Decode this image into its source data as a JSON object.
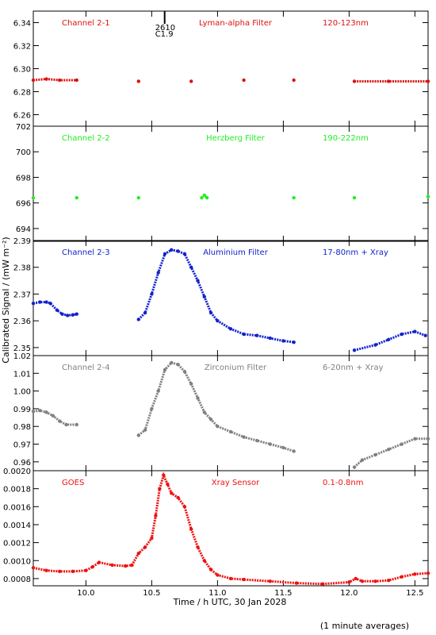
{
  "figure": {
    "ylabel": "Calibrated Signal / (mW m⁻²)",
    "xlabel": "Time / h UTC, 30 Jan 2028",
    "footnote": "(1 minute averages)"
  },
  "event": {
    "label_top": "2610",
    "label_bottom": "C1.9",
    "x": 10.55
  },
  "chart_data": [
    {
      "type": "scatter",
      "panel_label": "Channel 2-1",
      "filter": "Lyman-alpha Filter",
      "band": "120-123nm",
      "color": "#dd1111",
      "xlim": [
        9.6,
        12.6
      ],
      "ylim": [
        6.25,
        6.35
      ],
      "yticks": [
        6.26,
        6.28,
        6.3,
        6.32,
        6.34
      ],
      "ytick_labels": [
        "6.26",
        "6.28",
        "6.30",
        "6.32",
        "6.34"
      ],
      "series_points": [
        [
          9.6,
          6.29
        ],
        [
          9.7,
          6.291
        ],
        [
          9.8,
          6.29
        ],
        [
          9.93,
          6.29
        ],
        [
          10.4,
          6.289
        ],
        [
          10.8,
          6.289
        ],
        [
          11.2,
          6.29
        ],
        [
          11.58,
          6.29
        ],
        [
          12.04,
          6.289
        ],
        [
          12.3,
          6.289
        ],
        [
          12.6,
          6.289
        ]
      ]
    },
    {
      "type": "scatter",
      "panel_label": "Channel 2-2",
      "filter": "Herzberg Filter",
      "band": "190-222nm",
      "color": "#22ee22",
      "xlim": [
        9.6,
        12.6
      ],
      "ylim": [
        693,
        702
      ],
      "yticks": [
        694,
        696,
        698,
        700,
        702
      ],
      "ytick_labels": [
        "694",
        "696",
        "698",
        "700",
        "702"
      ],
      "series_points": [
        [
          9.6,
          696.4
        ],
        [
          9.93,
          696.4
        ],
        [
          10.4,
          696.4
        ],
        [
          10.88,
          696.4
        ],
        [
          10.9,
          696.6
        ],
        [
          10.92,
          696.4
        ],
        [
          11.58,
          696.4
        ],
        [
          12.04,
          696.4
        ],
        [
          12.6,
          696.5
        ]
      ]
    },
    {
      "type": "scatter",
      "panel_label": "Channel 2-3",
      "filter": "Aluminium Filter",
      "band": "17-80nm + Xray",
      "color": "#1122cc",
      "xlim": [
        9.6,
        12.6
      ],
      "ylim": [
        2.347,
        2.39
      ],
      "yticks": [
        2.35,
        2.36,
        2.37,
        2.38,
        2.39
      ],
      "ytick_labels": [
        "2.35",
        "2.36",
        "2.37",
        "2.38",
        "2.39"
      ],
      "series_points": [
        [
          9.6,
          2.3665
        ],
        [
          9.65,
          2.367
        ],
        [
          9.7,
          2.367
        ],
        [
          9.73,
          2.3665
        ],
        [
          9.78,
          2.364
        ],
        [
          9.82,
          2.3625
        ],
        [
          9.86,
          2.362
        ],
        [
          9.9,
          2.3622
        ],
        [
          9.93,
          2.3625
        ],
        [
          10.4,
          2.3605
        ],
        [
          10.45,
          2.363
        ],
        [
          10.5,
          2.37
        ],
        [
          10.55,
          2.378
        ],
        [
          10.6,
          2.385
        ],
        [
          10.65,
          2.3865
        ],
        [
          10.7,
          2.386
        ],
        [
          10.75,
          2.385
        ],
        [
          10.8,
          2.38
        ],
        [
          10.85,
          2.375
        ],
        [
          10.9,
          2.369
        ],
        [
          10.95,
          2.363
        ],
        [
          11.0,
          2.36
        ],
        [
          11.1,
          2.357
        ],
        [
          11.2,
          2.355
        ],
        [
          11.3,
          2.3545
        ],
        [
          11.4,
          2.3535
        ],
        [
          11.5,
          2.3525
        ],
        [
          11.58,
          2.352
        ],
        [
          12.04,
          2.349
        ],
        [
          12.2,
          2.351
        ],
        [
          12.3,
          2.353
        ],
        [
          12.4,
          2.355
        ],
        [
          12.5,
          2.356
        ],
        [
          12.58,
          2.3545
        ]
      ]
    },
    {
      "type": "scatter",
      "panel_label": "Channel 2-4",
      "filter": "Zirconium Filter",
      "band": "6-20nm + Xray",
      "color": "#808080",
      "xlim": [
        9.6,
        12.6
      ],
      "ylim": [
        0.955,
        1.02
      ],
      "yticks": [
        0.96,
        0.97,
        0.98,
        0.99,
        1.0,
        1.01,
        1.02
      ],
      "ytick_labels": [
        "0.96",
        "0.97",
        "0.98",
        "0.99",
        "1.00",
        "1.01",
        "1.02"
      ],
      "series_points": [
        [
          9.6,
          0.9885
        ],
        [
          9.65,
          0.989
        ],
        [
          9.7,
          0.988
        ],
        [
          9.75,
          0.986
        ],
        [
          9.8,
          0.983
        ],
        [
          9.85,
          0.981
        ],
        [
          9.93,
          0.981
        ],
        [
          10.4,
          0.975
        ],
        [
          10.45,
          0.978
        ],
        [
          10.5,
          0.99
        ],
        [
          10.55,
          1.0
        ],
        [
          10.6,
          1.012
        ],
        [
          10.65,
          1.016
        ],
        [
          10.7,
          1.015
        ],
        [
          10.75,
          1.011
        ],
        [
          10.8,
          1.004
        ],
        [
          10.85,
          0.996
        ],
        [
          10.9,
          0.988
        ],
        [
          10.95,
          0.984
        ],
        [
          11.0,
          0.98
        ],
        [
          11.1,
          0.977
        ],
        [
          11.2,
          0.974
        ],
        [
          11.3,
          0.972
        ],
        [
          11.4,
          0.97
        ],
        [
          11.5,
          0.968
        ],
        [
          11.58,
          0.966
        ],
        [
          12.04,
          0.957
        ],
        [
          12.1,
          0.961
        ],
        [
          12.2,
          0.964
        ],
        [
          12.3,
          0.967
        ],
        [
          12.4,
          0.97
        ],
        [
          12.5,
          0.973
        ],
        [
          12.6,
          0.973
        ]
      ]
    },
    {
      "type": "scatter",
      "panel_label": "GOES",
      "filter": "Xray Sensor",
      "band": "0.1-0.8nm",
      "color": "#ee1111",
      "xlim": [
        9.6,
        12.6
      ],
      "ylim": [
        0.00072,
        0.002
      ],
      "yticks": [
        0.0008,
        0.001,
        0.0012,
        0.0014,
        0.0016,
        0.0018,
        0.002
      ],
      "ytick_labels": [
        "0.0008",
        "0.0010",
        "0.0012",
        "0.0014",
        "0.0016",
        "0.0018",
        "0.0020"
      ],
      "series_points": [
        [
          9.6,
          0.00092
        ],
        [
          9.7,
          0.00089
        ],
        [
          9.8,
          0.00088
        ],
        [
          9.9,
          0.00088
        ],
        [
          10.0,
          0.00089
        ],
        [
          10.05,
          0.00093
        ],
        [
          10.1,
          0.00098
        ],
        [
          10.2,
          0.00095
        ],
        [
          10.3,
          0.00094
        ],
        [
          10.35,
          0.00095
        ],
        [
          10.4,
          0.00108
        ],
        [
          10.45,
          0.00115
        ],
        [
          10.5,
          0.00125
        ],
        [
          10.53,
          0.0015
        ],
        [
          10.56,
          0.0018
        ],
        [
          10.59,
          0.00195
        ],
        [
          10.62,
          0.00185
        ],
        [
          10.65,
          0.00175
        ],
        [
          10.7,
          0.0017
        ],
        [
          10.75,
          0.0016
        ],
        [
          10.8,
          0.00135
        ],
        [
          10.85,
          0.00115
        ],
        [
          10.9,
          0.001
        ],
        [
          10.95,
          0.0009
        ],
        [
          11.0,
          0.00084
        ],
        [
          11.1,
          0.0008
        ],
        [
          11.2,
          0.00079
        ],
        [
          11.4,
          0.00077
        ],
        [
          11.6,
          0.00075
        ],
        [
          11.8,
          0.00074
        ],
        [
          12.0,
          0.00076
        ],
        [
          12.05,
          0.0008
        ],
        [
          12.1,
          0.00077
        ],
        [
          12.2,
          0.00077
        ],
        [
          12.3,
          0.00078
        ],
        [
          12.4,
          0.00082
        ],
        [
          12.5,
          0.00085
        ],
        [
          12.6,
          0.00086
        ]
      ]
    }
  ],
  "xaxis": {
    "ticks": [
      10.0,
      10.5,
      11.0,
      11.5,
      12.0,
      12.5
    ],
    "tick_labels": [
      "10.0",
      "10.5",
      "11.0",
      "11.5",
      "12.0",
      "12.5"
    ],
    "xlim": [
      9.6,
      12.6
    ]
  }
}
